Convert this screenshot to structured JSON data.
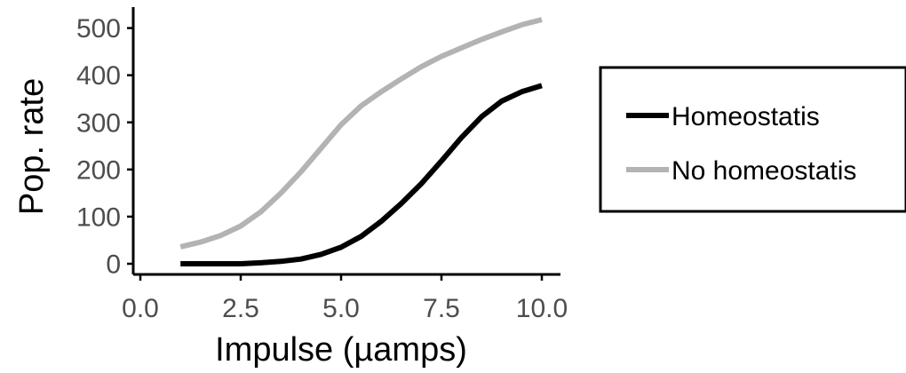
{
  "chart_data": {
    "type": "line",
    "xlabel": "Impulse (µamps)",
    "ylabel": "Pop. rate",
    "xlim": [
      0,
      10
    ],
    "ylim": [
      0,
      520
    ],
    "x_ticks": [
      "0.0",
      "2.5",
      "5.0",
      "7.5",
      "10.0"
    ],
    "y_ticks": [
      "0",
      "100",
      "200",
      "300",
      "400",
      "500"
    ],
    "grid": false,
    "legend_position": "right",
    "x": [
      1.0,
      1.5,
      2.0,
      2.5,
      3.0,
      3.5,
      4.0,
      4.5,
      5.0,
      5.5,
      6.0,
      6.5,
      7.0,
      7.5,
      8.0,
      8.5,
      9.0,
      9.5,
      10.0
    ],
    "series": [
      {
        "name": "Homeostatis",
        "color": "#000000",
        "values": [
          0,
          0,
          0,
          0,
          2,
          5,
          10,
          20,
          35,
          58,
          90,
          128,
          170,
          218,
          268,
          312,
          345,
          365,
          378
        ]
      },
      {
        "name": "No homeostatis",
        "color": "#b3b3b3",
        "values": [
          36,
          46,
          60,
          80,
          110,
          150,
          195,
          245,
          295,
          335,
          365,
          392,
          418,
          440,
          458,
          476,
          492,
          507,
          518
        ]
      }
    ]
  }
}
